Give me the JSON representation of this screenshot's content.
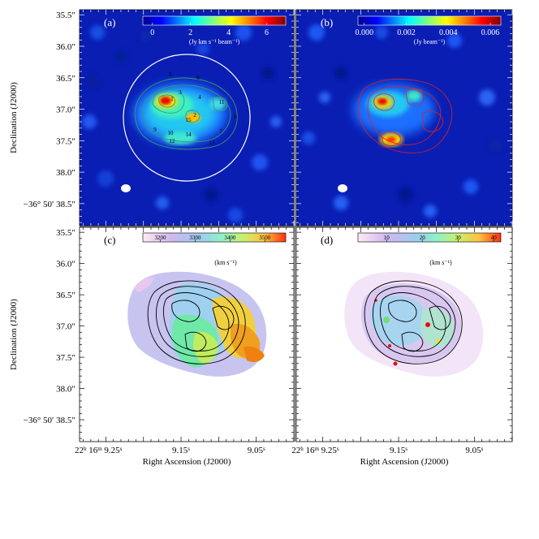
{
  "chart_data": {
    "type": "heatmap",
    "shared_axes": {
      "ylabel": "Declination (J2000)",
      "xlabel": "Right Ascension (J2000)",
      "yticks": [
        "35.5″",
        "36.0″",
        "36.5″",
        "37.0″",
        "37.5″",
        "38.0″",
        "−36° 50′ 38.5″"
      ],
      "ytick_values": [
        35.5,
        36.0,
        36.5,
        37.0,
        37.5,
        38.0,
        38.5
      ],
      "xticks": [
        {
          "h": "22",
          "m": "16",
          "s": "9.25",
          "label": "22ʰ 16ᵐ 9.25ˢ"
        },
        {
          "h": "",
          "m": "",
          "s": "9.15",
          "label": "9.15ˢ"
        },
        {
          "h": "",
          "m": "",
          "s": "9.05",
          "label": "9.05ˢ"
        }
      ],
      "xtick_values": [
        9.25,
        9.15,
        9.05
      ],
      "xlim": [
        9.285,
        9.0
      ],
      "ylim": [
        35.42,
        38.85
      ]
    },
    "panels": [
      {
        "id": "a",
        "label": "(a)",
        "colorbar": {
          "ticks": [
            "0",
            "2",
            "4",
            "6"
          ],
          "tick_values": [
            0,
            2,
            4,
            6
          ],
          "range": [
            -0.5,
            7.0
          ],
          "unit": "(Jy km s⁻¹ beam⁻¹)",
          "colormap": "jet"
        },
        "clump_labels": [
          "1",
          "2",
          "3",
          "4",
          "5",
          "6",
          "7",
          "8",
          "9",
          "10",
          "11",
          "12",
          "13",
          "14",
          "15"
        ],
        "overlay": "white circle and cyan contours",
        "beam": true
      },
      {
        "id": "b",
        "label": "(b)",
        "colorbar": {
          "ticks": [
            "0.000",
            "0.002",
            "0.004",
            "0.006"
          ],
          "tick_values": [
            0.0,
            0.002,
            0.004,
            0.006
          ],
          "range": [
            -0.0003,
            0.0065
          ],
          "unit": "(Jy beam⁻¹)",
          "colormap": "jet"
        },
        "overlay": "red contours",
        "beam": true
      },
      {
        "id": "c",
        "label": "(c)",
        "colorbar": {
          "ticks": [
            "3200",
            "3300",
            "3400",
            "3500"
          ],
          "tick_values": [
            3200,
            3300,
            3400,
            3500
          ],
          "range": [
            3150,
            3560
          ],
          "unit": "(km s⁻¹)",
          "colormap": "pastel-rainbow"
        },
        "overlay": "black contours"
      },
      {
        "id": "d",
        "label": "(d)",
        "colorbar": {
          "ticks": [
            "10",
            "20",
            "30",
            "40"
          ],
          "tick_values": [
            10,
            20,
            30,
            40
          ],
          "range": [
            2,
            42
          ],
          "unit": "(km s⁻¹)",
          "colormap": "pastel-rainbow"
        },
        "overlay": "black contours"
      }
    ]
  }
}
